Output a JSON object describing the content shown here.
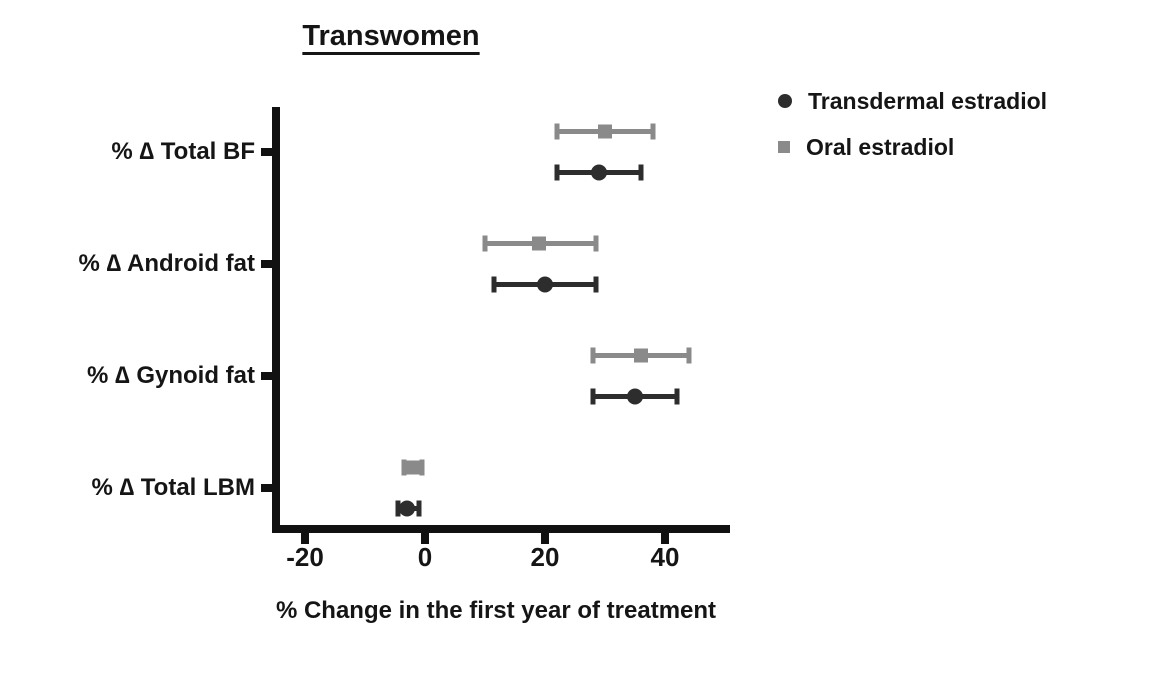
{
  "chart_data": {
    "type": "scatter",
    "subtype": "horizontal-dot-plot-with-error-bars",
    "title": "Transwomen",
    "xlabel": "% Change in the first year of treatment",
    "ylabel": "",
    "categories": [
      "% ∆ Total BF",
      "% ∆ Android fat",
      "% ∆ Gynoid fat",
      "% ∆ Total LBM"
    ],
    "x_ticks": [
      -20,
      0,
      20,
      40
    ],
    "xlim": [
      -25,
      50
    ],
    "grid": false,
    "legend_position": "top-right",
    "axis_color": "#111111",
    "series": [
      {
        "name": "Transdermal estradiol",
        "marker": "circle",
        "color": "#2d2d2d",
        "values": [
          29,
          20,
          35,
          -3
        ],
        "ci_low": [
          22,
          11.5,
          28,
          -4.5
        ],
        "ci_high": [
          36,
          28.5,
          42,
          -1
        ]
      },
      {
        "name": "Oral estradiol",
        "marker": "square",
        "color": "#8a8a8a",
        "values": [
          30,
          19,
          36,
          -2
        ],
        "ci_low": [
          22,
          10,
          28,
          -3.5
        ],
        "ci_high": [
          38,
          28.5,
          44,
          -0.5
        ]
      }
    ]
  }
}
